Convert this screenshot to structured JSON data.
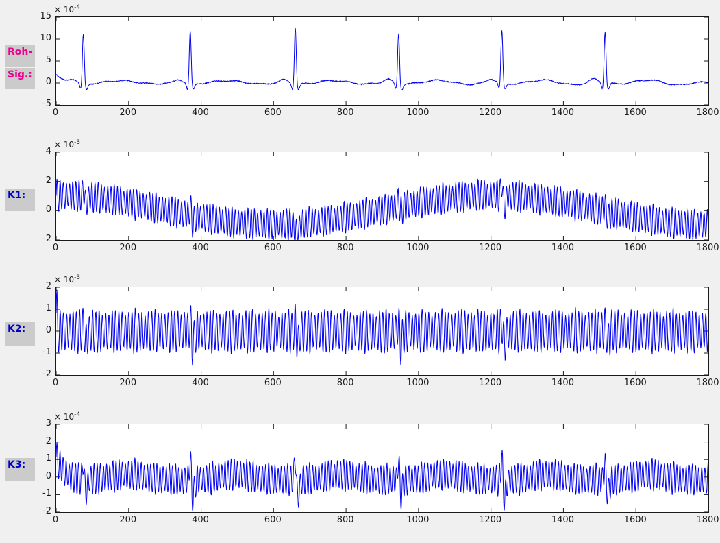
{
  "figure": {
    "background": "#f0f0f0",
    "plot_background": "#ffffff",
    "axis_color": "#1a1a1a",
    "tick_label_color": "#1a1a1a",
    "label_box_color": "#cbcbcb",
    "line_color": "#0000ee"
  },
  "row_labels": [
    {
      "id": "roh",
      "color": "#ec008c",
      "lines": [
        "Roh-",
        "Sig.:"
      ]
    },
    {
      "id": "k1",
      "color": "#0000c8",
      "lines": [
        "K1:"
      ]
    },
    {
      "id": "k2",
      "color": "#0000c8",
      "lines": [
        "K2:"
      ]
    },
    {
      "id": "k3",
      "color": "#0000c8",
      "lines": [
        "K3:"
      ]
    }
  ],
  "chart_data": [
    {
      "id": "roh",
      "type": "line",
      "label": "Roh-Sig.:",
      "exp_prefix": "× 10",
      "exp_power": "-4",
      "xlim": [
        0,
        1800
      ],
      "ylim": [
        -5,
        15
      ],
      "xticks": [
        0,
        200,
        400,
        600,
        800,
        1000,
        1200,
        1400,
        1600,
        1800
      ],
      "yticks": [
        -5,
        0,
        5,
        10,
        15
      ],
      "line_color": "#0000ee",
      "grid": false,
      "signal": {
        "kind": "ecg",
        "start_transient": 1.7,
        "beats": [
          75,
          370,
          660,
          945,
          1230,
          1515
        ],
        "r_amps": [
          11.5,
          12.3,
          13.1,
          11.7,
          12.3,
          11.9
        ],
        "p_amp": 0.85,
        "q_amp": -1.5,
        "s_amp": -1.4,
        "t_amp": 0.5,
        "noise": 0.1
      }
    },
    {
      "id": "k1",
      "type": "line",
      "label": "K1:",
      "exp_prefix": "× 10",
      "exp_power": "-3",
      "xlim": [
        0,
        1800
      ],
      "ylim": [
        -2,
        4
      ],
      "xticks": [
        0,
        200,
        400,
        600,
        800,
        1000,
        1200,
        1400,
        1600,
        1800
      ],
      "yticks": [
        -2,
        0,
        2,
        4
      ],
      "line_color": "#0000ee",
      "grid": false,
      "signal": {
        "kind": "carrier",
        "period": 8.8,
        "amp": 0.95,
        "mean": 0.05,
        "slow_amp": 1.0,
        "slow_period": 1200,
        "beats": [
          75,
          370,
          660,
          945,
          1230,
          1515
        ],
        "spikes": [
          0.7,
          0.8,
          -0.7,
          0.6,
          1.1,
          0.7
        ],
        "noise": 0.05
      }
    },
    {
      "id": "k2",
      "type": "line",
      "label": "K2:",
      "exp_prefix": "× 10",
      "exp_power": "-3",
      "xlim": [
        0,
        1800
      ],
      "ylim": [
        -2,
        2
      ],
      "xticks": [
        0,
        200,
        400,
        600,
        800,
        1000,
        1200,
        1400,
        1600,
        1800
      ],
      "yticks": [
        -2,
        -1,
        0,
        1,
        2
      ],
      "line_color": "#0000ee",
      "grid": false,
      "signal": {
        "kind": "carrier",
        "period": 9.0,
        "amp": 0.88,
        "mean": 0.0,
        "slow_amp": 0,
        "slow_period": 1200,
        "start_spike": 1.0,
        "bipolar": 1.0,
        "beats": [
          75,
          370,
          660,
          945,
          1230,
          1515
        ],
        "spikes": [
          0.5,
          0.55,
          0.5,
          0.55,
          0.5,
          0.45
        ],
        "noise": 0.05
      }
    },
    {
      "id": "k3",
      "type": "line",
      "label": "K3:",
      "exp_prefix": "× 10",
      "exp_power": "-4",
      "xlim": [
        0,
        1800
      ],
      "ylim": [
        -2,
        3
      ],
      "xticks": [
        0,
        200,
        400,
        600,
        800,
        1000,
        1200,
        1400,
        1600,
        1800
      ],
      "yticks": [
        -2,
        -1,
        0,
        1,
        2,
        3
      ],
      "line_color": "#0000ee",
      "grid": false,
      "signal": {
        "kind": "carrier",
        "period": 8.6,
        "amp": 0.8,
        "mean": -0.15,
        "slow_amp": 0,
        "slow_period": 1200,
        "start_transient": 1.3,
        "t_bump": 0.3,
        "beats": [
          75,
          370,
          660,
          945,
          1230,
          1515
        ],
        "spikes": [
          1.2,
          1.6,
          1.7,
          1.4,
          1.7,
          1.3
        ],
        "noise": 0.06
      }
    }
  ]
}
